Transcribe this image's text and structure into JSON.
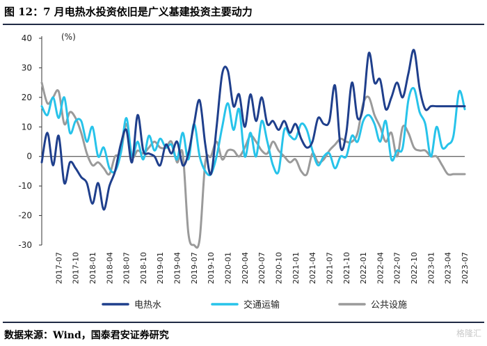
{
  "header": {
    "title": "图 12：7 月电热水投资依旧是广义基建投资主要动力"
  },
  "footer": {
    "source": "数据来源：Wind，国泰君安证券研究",
    "watermark": "格隆汇"
  },
  "chart_data": {
    "type": "line",
    "title": "图 12：7 月电热水投资依旧是广义基建投资主要动力",
    "ylabel": "(%)",
    "xlabel": "",
    "ylim": [
      -30,
      40
    ],
    "yticks": [
      -30,
      -20,
      -10,
      0,
      10,
      20,
      30,
      40
    ],
    "grid": false,
    "legend_position": "bottom",
    "x": [
      "2017-04",
      "2017-05",
      "2017-06",
      "2017-07",
      "2017-08",
      "2017-09",
      "2017-10",
      "2017-11",
      "2017-12",
      "2018-01",
      "2018-02",
      "2018-03",
      "2018-04",
      "2018-05",
      "2018-06",
      "2018-07",
      "2018-08",
      "2018-09",
      "2018-10",
      "2018-11",
      "2018-12",
      "2019-01",
      "2019-02",
      "2019-03",
      "2019-04",
      "2019-05",
      "2019-06",
      "2019-07",
      "2019-08",
      "2019-09",
      "2019-10",
      "2019-11",
      "2019-12",
      "2020-01",
      "2020-02",
      "2020-03",
      "2020-04",
      "2020-05",
      "2020-06",
      "2020-07",
      "2020-08",
      "2020-09",
      "2020-10",
      "2020-11",
      "2020-12",
      "2021-01",
      "2021-02",
      "2021-03",
      "2021-04",
      "2021-05",
      "2021-06",
      "2021-07",
      "2021-08",
      "2021-09",
      "2021-10",
      "2021-11",
      "2021-12",
      "2022-01",
      "2022-02",
      "2022-03",
      "2022-04",
      "2022-05",
      "2022-06",
      "2022-07",
      "2022-08",
      "2022-09",
      "2022-10",
      "2022-11",
      "2022-12",
      "2023-01",
      "2023-02",
      "2023-03",
      "2023-04",
      "2023-05",
      "2023-06",
      "2023-07"
    ],
    "xticks": [
      "2017-07",
      "2017-10",
      "2018-01",
      "2018-04",
      "2018-07",
      "2018-10",
      "2019-01",
      "2019-04",
      "2019-07",
      "2019-10",
      "2020-01",
      "2020-04",
      "2020-07",
      "2020-10",
      "2021-01",
      "2021-04",
      "2021-07",
      "2021-10",
      "2022-01",
      "2022-04",
      "2022-07",
      "2022-10",
      "2023-01",
      "2023-04",
      "2023-07"
    ],
    "series": [
      {
        "name": "电热水",
        "color": "#1f3f8c",
        "values": [
          -2,
          8,
          -3,
          7,
          -9,
          -2,
          -4,
          -7,
          -9,
          -16,
          -9,
          -18,
          -10,
          -5,
          4,
          9,
          -2,
          14,
          2,
          1,
          0,
          -3,
          4,
          1,
          5,
          -3,
          1,
          11,
          19,
          4,
          -6,
          10,
          28,
          29,
          17,
          21,
          10,
          21,
          12,
          20,
          11,
          12,
          9,
          12,
          8,
          11,
          6,
          3,
          5,
          13,
          11,
          12,
          24,
          3,
          8,
          25,
          13,
          17,
          35,
          25,
          26,
          16,
          20,
          25,
          20,
          28,
          36,
          23,
          16,
          17,
          17,
          17,
          17,
          17,
          17,
          17
        ]
      },
      {
        "name": "交通运输",
        "color": "#27c3ea",
        "values": [
          17,
          14,
          20,
          13,
          20,
          8,
          12,
          12,
          5,
          10,
          0,
          3,
          -4,
          -5,
          1,
          13,
          0,
          5,
          -1,
          7,
          2,
          6,
          3,
          4,
          -1,
          8,
          -1,
          11,
          0,
          -5,
          -6,
          0,
          10,
          18,
          9,
          16,
          0,
          8,
          0,
          12,
          5,
          -3,
          -5,
          9,
          7,
          6,
          11,
          9,
          2,
          -3,
          0,
          1,
          -4,
          0,
          0,
          7,
          5,
          12,
          14,
          11,
          5,
          12,
          -1,
          2,
          3,
          19,
          23,
          15,
          11,
          0,
          10,
          3,
          4,
          7,
          22,
          16
        ]
      },
      {
        "name": "公共设施",
        "color": "#9a9a9a",
        "values": [
          25,
          18,
          20,
          22,
          11,
          15,
          13,
          8,
          1,
          -3,
          -2,
          -4,
          -6,
          0,
          1,
          11,
          0,
          2,
          1,
          3,
          5,
          3,
          3,
          5,
          -2,
          1,
          -26,
          -30,
          -28,
          -2,
          0,
          5,
          -1,
          2,
          2,
          0,
          3,
          7,
          5,
          2,
          1,
          5,
          2,
          0,
          -2,
          -1,
          -5,
          -6,
          1,
          -2,
          -1,
          2,
          4,
          6,
          5,
          5,
          8,
          18,
          20,
          14,
          10,
          5,
          8,
          0,
          10,
          8,
          3,
          2,
          2,
          0,
          0,
          -3,
          -6,
          -6,
          -6,
          -6
        ]
      }
    ]
  }
}
